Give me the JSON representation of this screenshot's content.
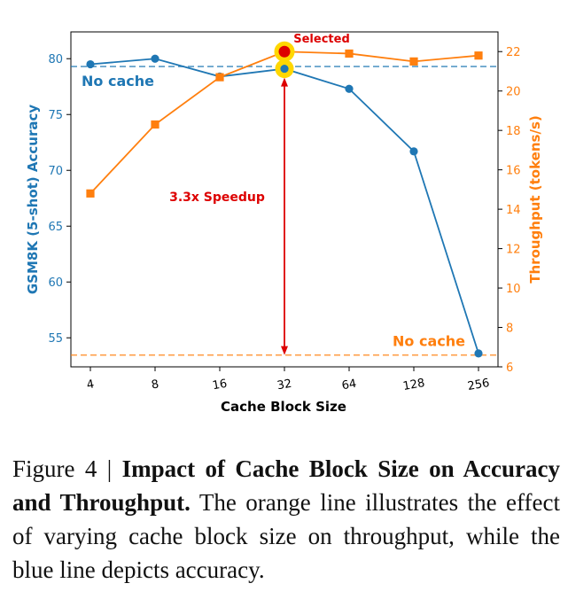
{
  "chart_data": {
    "type": "line",
    "xlabel": "Cache Block Size",
    "categories": [
      "4",
      "8",
      "16",
      "32",
      "64",
      "128",
      "256"
    ],
    "series": [
      {
        "name": "GSM8K (5-shot) Accuracy",
        "axis": "left",
        "color": "#1f77b4",
        "marker": "circle",
        "values": [
          79.5,
          80.0,
          78.4,
          79.1,
          77.3,
          71.7,
          53.6
        ]
      },
      {
        "name": "Throughput (tokens/s)",
        "axis": "right",
        "color": "#ff7f0e",
        "marker": "square",
        "values": [
          14.8,
          18.3,
          20.7,
          22.0,
          21.9,
          21.5,
          21.8
        ]
      }
    ],
    "left_axis": {
      "label": "GSM8K (5-shot) Accuracy",
      "ylim": [
        52.4,
        82.4
      ],
      "ticks": [
        55,
        60,
        65,
        70,
        75,
        80
      ]
    },
    "right_axis": {
      "label": "Throughput (tokens/s)",
      "ylim": [
        6.0,
        23.0
      ],
      "ticks": [
        6,
        8,
        10,
        12,
        14,
        16,
        18,
        20,
        22
      ]
    },
    "baselines": [
      {
        "label": "No cache",
        "axis": "left",
        "value": 79.3,
        "color": "#1f77b4"
      },
      {
        "label": "No cache",
        "axis": "right",
        "value": 6.6,
        "color": "#ff7f0e"
      }
    ],
    "annotations": {
      "selected_label": "Selected",
      "selected_category": "32",
      "speedup_label": "3.3x Speedup",
      "highlight_color": "#ffd700",
      "accent_color": "#dd0000"
    }
  },
  "caption": {
    "figure_label": "Figure 4 |",
    "title": "Impact of Cache Block Size on Accuracy and Throughput.",
    "body": "The orange line illustrates the effect of varying cache block size on throughput, while the blue line depicts accuracy."
  }
}
